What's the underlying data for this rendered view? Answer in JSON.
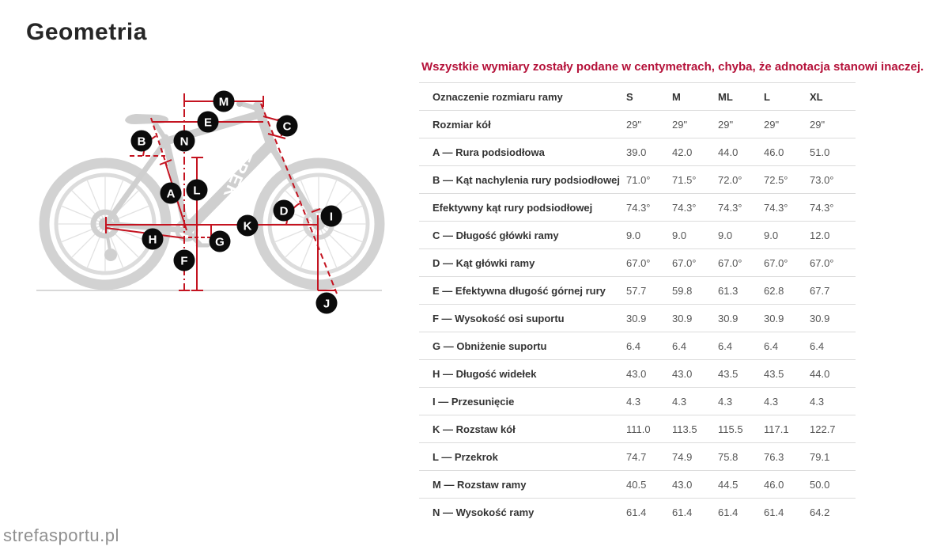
{
  "page": {
    "title": "Geometria",
    "watermark": "strefasportu.pl",
    "note": "Wszystkie wymiary zostały podane w centymetrach, chyba, że adnotacja stanowi inaczej."
  },
  "colors": {
    "note_red": "#b5123a",
    "diagram_red": "#c41320",
    "badge_black": "#0b0b0b",
    "bike_gray": "#cfcfcf",
    "label_text": "#333333",
    "value_text": "#555555",
    "row_border": "#dcdcdc"
  },
  "diagram": {
    "brand_logo": "TREK",
    "labels": [
      "M",
      "E",
      "C",
      "B",
      "N",
      "A",
      "L",
      "D",
      "I",
      "K",
      "H",
      "G",
      "F",
      "J"
    ]
  },
  "geometry_table": {
    "columns": [
      "Oznaczenie rozmiaru ramy",
      "S",
      "M",
      "ML",
      "L",
      "XL"
    ],
    "rows": [
      {
        "label": "Rozmiar kół",
        "values": [
          "29\"",
          "29\"",
          "29\"",
          "29\"",
          "29\""
        ]
      },
      {
        "label": "A — Rura podsiodłowa",
        "values": [
          "39.0",
          "42.0",
          "44.0",
          "46.0",
          "51.0"
        ]
      },
      {
        "label": "B — Kąt nachylenia rury podsiodłowej",
        "values": [
          "71.0°",
          "71.5°",
          "72.0°",
          "72.5°",
          "73.0°"
        ]
      },
      {
        "label": "Efektywny kąt rury podsiodłowej",
        "values": [
          "74.3°",
          "74.3°",
          "74.3°",
          "74.3°",
          "74.3°"
        ]
      },
      {
        "label": "C — Długość główki ramy",
        "values": [
          "9.0",
          "9.0",
          "9.0",
          "9.0",
          "12.0"
        ]
      },
      {
        "label": "D — Kąt główki ramy",
        "values": [
          "67.0°",
          "67.0°",
          "67.0°",
          "67.0°",
          "67.0°"
        ]
      },
      {
        "label": "E — Efektywna długość górnej rury",
        "values": [
          "57.7",
          "59.8",
          "61.3",
          "62.8",
          "67.7"
        ]
      },
      {
        "label": "F — Wysokość osi suportu",
        "values": [
          "30.9",
          "30.9",
          "30.9",
          "30.9",
          "30.9"
        ]
      },
      {
        "label": "G — Obniżenie suportu",
        "values": [
          "6.4",
          "6.4",
          "6.4",
          "6.4",
          "6.4"
        ]
      },
      {
        "label": "H — Długość widełek",
        "values": [
          "43.0",
          "43.0",
          "43.5",
          "43.5",
          "44.0"
        ]
      },
      {
        "label": "I — Przesunięcie",
        "values": [
          "4.3",
          "4.3",
          "4.3",
          "4.3",
          "4.3"
        ]
      },
      {
        "label": "K — Rozstaw kół",
        "values": [
          "111.0",
          "113.5",
          "115.5",
          "117.1",
          "122.7"
        ]
      },
      {
        "label": "L — Przekrok",
        "values": [
          "74.7",
          "74.9",
          "75.8",
          "76.3",
          "79.1"
        ]
      },
      {
        "label": "M — Rozstaw ramy",
        "values": [
          "40.5",
          "43.0",
          "44.5",
          "46.0",
          "50.0"
        ]
      },
      {
        "label": "N — Wysokość ramy",
        "values": [
          "61.4",
          "61.4",
          "61.4",
          "61.4",
          "64.2"
        ]
      }
    ]
  }
}
